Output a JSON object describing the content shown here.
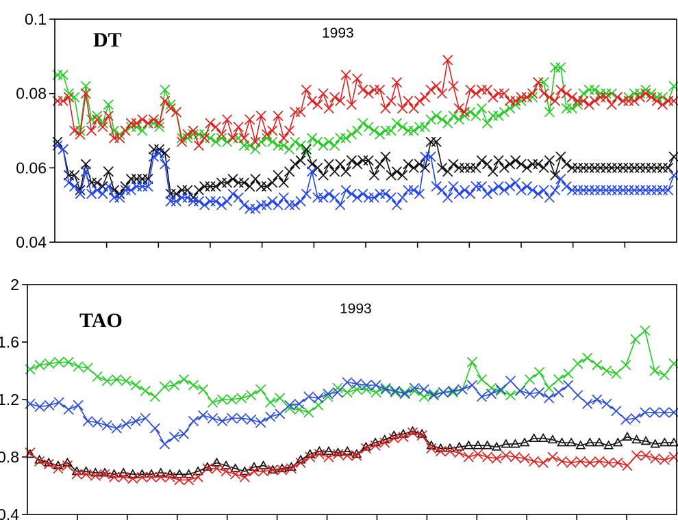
{
  "chart_data": [
    {
      "type": "line",
      "title": "DT",
      "subtitle": "1993",
      "xlabel": "",
      "ylabel": "",
      "xlim": [
        1,
        120
      ],
      "ylim": [
        0.04,
        0.1
      ],
      "yticks": [
        0.04,
        0.06,
        0.08,
        0.1
      ],
      "ytick_labels": [
        "0.04",
        "0.06",
        "0.08",
        "0.1"
      ],
      "grid": false,
      "legend": "none",
      "series": [
        {
          "color": "#22cc22",
          "marker": "x",
          "values": [
            0.085,
            0.085,
            0.08,
            0.079,
            0.07,
            0.082,
            0.073,
            0.074,
            0.072,
            0.077,
            0.07,
            0.069,
            0.07,
            0.071,
            0.071,
            0.07,
            0.072,
            0.072,
            0.071,
            0.081,
            0.077,
            0.075,
            0.068,
            0.068,
            0.069,
            0.069,
            0.069,
            0.068,
            0.067,
            0.068,
            0.067,
            0.068,
            0.068,
            0.066,
            0.066,
            0.065,
            0.067,
            0.068,
            0.067,
            0.066,
            0.066,
            0.065,
            0.067,
            0.066,
            0.064,
            0.068,
            0.067,
            0.066,
            0.067,
            0.066,
            0.068,
            0.068,
            0.069,
            0.07,
            0.072,
            0.071,
            0.07,
            0.069,
            0.07,
            0.07,
            0.072,
            0.071,
            0.07,
            0.07,
            0.071,
            0.071,
            0.073,
            0.074,
            0.073,
            0.072,
            0.074,
            0.073,
            0.074,
            0.075,
            0.074,
            0.076,
            0.072,
            0.074,
            0.074,
            0.075,
            0.076,
            0.077,
            0.078,
            0.079,
            0.079,
            0.083,
            0.083,
            0.075,
            0.087,
            0.087,
            0.076,
            0.076,
            0.077,
            0.08,
            0.081,
            0.081,
            0.08,
            0.08,
            0.08,
            0.079,
            0.078,
            0.079,
            0.08,
            0.08,
            0.081,
            0.08,
            0.079,
            0.079,
            0.078,
            0.082
          ]
        },
        {
          "color": "#e02020",
          "marker": "x",
          "values": [
            0.078,
            0.078,
            0.079,
            0.07,
            0.069,
            0.08,
            0.07,
            0.073,
            0.071,
            0.074,
            0.068,
            0.068,
            0.07,
            0.072,
            0.072,
            0.073,
            0.072,
            0.073,
            0.072,
            0.078,
            0.076,
            0.075,
            0.067,
            0.069,
            0.07,
            0.066,
            0.068,
            0.072,
            0.071,
            0.069,
            0.073,
            0.068,
            0.071,
            0.068,
            0.073,
            0.067,
            0.074,
            0.069,
            0.07,
            0.074,
            0.068,
            0.07,
            0.075,
            0.075,
            0.081,
            0.078,
            0.077,
            0.08,
            0.076,
            0.079,
            0.078,
            0.085,
            0.077,
            0.084,
            0.081,
            0.08,
            0.081,
            0.081,
            0.076,
            0.078,
            0.083,
            0.076,
            0.078,
            0.076,
            0.078,
            0.079,
            0.081,
            0.082,
            0.08,
            0.089,
            0.082,
            0.076,
            0.075,
            0.081,
            0.08,
            0.081,
            0.081,
            0.079,
            0.08,
            0.08,
            0.078,
            0.078,
            0.079,
            0.079,
            0.08,
            0.083,
            0.08,
            0.079,
            0.078,
            0.081,
            0.08,
            0.079,
            0.078,
            0.078,
            0.077,
            0.078,
            0.079,
            0.079,
            0.077,
            0.079,
            0.078,
            0.078,
            0.078,
            0.079,
            0.08,
            0.079,
            0.078,
            0.077,
            0.078,
            0.078
          ]
        },
        {
          "color": "#111111",
          "marker": "x",
          "values": [
            0.067,
            0.065,
            0.058,
            0.058,
            0.054,
            0.061,
            0.056,
            0.056,
            0.055,
            0.059,
            0.054,
            0.053,
            0.055,
            0.057,
            0.057,
            0.057,
            0.057,
            0.065,
            0.065,
            0.064,
            0.053,
            0.053,
            0.054,
            0.054,
            0.052,
            0.054,
            0.055,
            0.055,
            0.055,
            0.056,
            0.056,
            0.057,
            0.056,
            0.056,
            0.055,
            0.057,
            0.055,
            0.055,
            0.056,
            0.058,
            0.056,
            0.059,
            0.061,
            0.062,
            0.065,
            0.061,
            0.06,
            0.058,
            0.061,
            0.059,
            0.061,
            0.059,
            0.062,
            0.061,
            0.062,
            0.062,
            0.058,
            0.061,
            0.063,
            0.058,
            0.059,
            0.058,
            0.061,
            0.06,
            0.061,
            0.06,
            0.067,
            0.067,
            0.06,
            0.059,
            0.061,
            0.06,
            0.06,
            0.06,
            0.06,
            0.062,
            0.061,
            0.059,
            0.062,
            0.06,
            0.061,
            0.062,
            0.061,
            0.06,
            0.061,
            0.061,
            0.06,
            0.062,
            0.058,
            0.063,
            0.061,
            0.06,
            0.06,
            0.06,
            0.06,
            0.06,
            0.06,
            0.06,
            0.06,
            0.06,
            0.06,
            0.06,
            0.06,
            0.06,
            0.06,
            0.06,
            0.06,
            0.06,
            0.06,
            0.063
          ]
        },
        {
          "color": "#2244ee",
          "marker": "x",
          "values": [
            0.066,
            0.065,
            0.056,
            0.055,
            0.053,
            0.059,
            0.053,
            0.054,
            0.053,
            0.055,
            0.052,
            0.052,
            0.054,
            0.054,
            0.055,
            0.055,
            0.055,
            0.063,
            0.064,
            0.061,
            0.051,
            0.051,
            0.052,
            0.052,
            0.051,
            0.051,
            0.05,
            0.051,
            0.051,
            0.05,
            0.051,
            0.053,
            0.052,
            0.05,
            0.049,
            0.049,
            0.05,
            0.05,
            0.051,
            0.05,
            0.052,
            0.05,
            0.05,
            0.051,
            0.053,
            0.059,
            0.052,
            0.052,
            0.053,
            0.052,
            0.05,
            0.054,
            0.053,
            0.052,
            0.053,
            0.052,
            0.052,
            0.053,
            0.053,
            0.052,
            0.05,
            0.052,
            0.054,
            0.054,
            0.053,
            0.063,
            0.063,
            0.055,
            0.054,
            0.052,
            0.055,
            0.053,
            0.054,
            0.053,
            0.055,
            0.055,
            0.053,
            0.054,
            0.055,
            0.054,
            0.055,
            0.056,
            0.054,
            0.055,
            0.054,
            0.053,
            0.054,
            0.052,
            0.054,
            0.057,
            0.055,
            0.054,
            0.054,
            0.054,
            0.054,
            0.054,
            0.054,
            0.054,
            0.054,
            0.054,
            0.054,
            0.054,
            0.054,
            0.054,
            0.054,
            0.054,
            0.054,
            0.054,
            0.054,
            0.058
          ]
        }
      ]
    },
    {
      "type": "line",
      "title": "TAO",
      "subtitle": "1993",
      "xlabel": "",
      "ylabel": "",
      "xlim": [
        1,
        120
      ],
      "ylim": [
        0.4,
        2.0
      ],
      "yticks": [
        0.4,
        0.8,
        1.2,
        1.6,
        2.0
      ],
      "ytick_labels": [
        "0.4",
        "0.8",
        "1.2",
        "1.6",
        "2"
      ],
      "grid": false,
      "legend": "none",
      "series": [
        {
          "color": "#22cc22",
          "marker": "x",
          "values": [
            1.41,
            1.44,
            1.45,
            1.46,
            1.46,
            1.43,
            1.42,
            1.36,
            1.33,
            1.34,
            1.33,
            1.3,
            1.26,
            1.22,
            1.29,
            1.3,
            1.34,
            1.3,
            1.27,
            1.18,
            1.2,
            1.2,
            1.21,
            1.23,
            1.27,
            1.18,
            1.21,
            1.14,
            1.13,
            1.11,
            1.16,
            1.22,
            1.28,
            1.25,
            1.27,
            1.27,
            1.25,
            1.28,
            1.25,
            1.25,
            1.26,
            1.22,
            1.24,
            1.25,
            1.25,
            1.27,
            1.46,
            1.34,
            1.28,
            1.26,
            1.23,
            1.26,
            1.34,
            1.39,
            1.28,
            1.34,
            1.38,
            1.45,
            1.49,
            1.44,
            1.4,
            1.38,
            1.44,
            1.62,
            1.68,
            1.4,
            1.37,
            1.45
          ]
        },
        {
          "color": "#2a4bdc",
          "marker": "x",
          "values": [
            1.17,
            1.15,
            1.16,
            1.18,
            1.13,
            1.16,
            1.05,
            1.04,
            1.02,
            1.0,
            1.03,
            1.05,
            1.07,
            1.0,
            0.89,
            0.94,
            0.96,
            1.05,
            1.09,
            1.07,
            1.05,
            1.07,
            1.07,
            1.06,
            1.04,
            1.08,
            1.1,
            1.16,
            1.17,
            1.22,
            1.21,
            1.24,
            1.25,
            1.32,
            1.31,
            1.3,
            1.3,
            1.27,
            1.26,
            1.24,
            1.28,
            1.27,
            1.23,
            1.25,
            1.26,
            1.27,
            1.3,
            1.22,
            1.24,
            1.27,
            1.33,
            1.26,
            1.24,
            1.25,
            1.21,
            1.25,
            1.3,
            1.23,
            1.17,
            1.2,
            1.17,
            1.12,
            1.06,
            1.07,
            1.11,
            1.11,
            1.11,
            1.11
          ]
        },
        {
          "color": "#111111",
          "marker": "triangle",
          "values": [
            0.82,
            0.78,
            0.76,
            0.74,
            0.76,
            0.7,
            0.7,
            0.69,
            0.69,
            0.68,
            0.69,
            0.68,
            0.68,
            0.68,
            0.69,
            0.68,
            0.68,
            0.68,
            0.7,
            0.73,
            0.76,
            0.74,
            0.72,
            0.7,
            0.73,
            0.74,
            0.71,
            0.72,
            0.73,
            0.78,
            0.82,
            0.84,
            0.84,
            0.83,
            0.84,
            0.82,
            0.87,
            0.9,
            0.92,
            0.95,
            0.96,
            0.98,
            0.96,
            0.88,
            0.86,
            0.86,
            0.87,
            0.88,
            0.88,
            0.88,
            0.87,
            0.89,
            0.89,
            0.9,
            0.93,
            0.93,
            0.92,
            0.9,
            0.9,
            0.88,
            0.9,
            0.9,
            0.88,
            0.9,
            0.94,
            0.92,
            0.91,
            0.89,
            0.9,
            0.9
          ]
        },
        {
          "color": "#e02020",
          "marker": "x",
          "values": [
            0.83,
            0.77,
            0.75,
            0.72,
            0.74,
            0.68,
            0.68,
            0.67,
            0.68,
            0.66,
            0.66,
            0.65,
            0.66,
            0.66,
            0.66,
            0.66,
            0.64,
            0.64,
            0.66,
            0.72,
            0.72,
            0.7,
            0.68,
            0.66,
            0.7,
            0.7,
            0.71,
            0.71,
            0.72,
            0.76,
            0.8,
            0.82,
            0.8,
            0.82,
            0.81,
            0.81,
            0.86,
            0.88,
            0.9,
            0.93,
            0.94,
            0.97,
            0.95,
            0.86,
            0.84,
            0.84,
            0.83,
            0.8,
            0.82,
            0.8,
            0.79,
            0.81,
            0.8,
            0.79,
            0.77,
            0.76,
            0.8,
            0.77,
            0.76,
            0.77,
            0.76,
            0.77,
            0.76,
            0.76,
            0.74,
            0.81,
            0.81,
            0.79,
            0.78,
            0.8
          ]
        }
      ]
    }
  ]
}
